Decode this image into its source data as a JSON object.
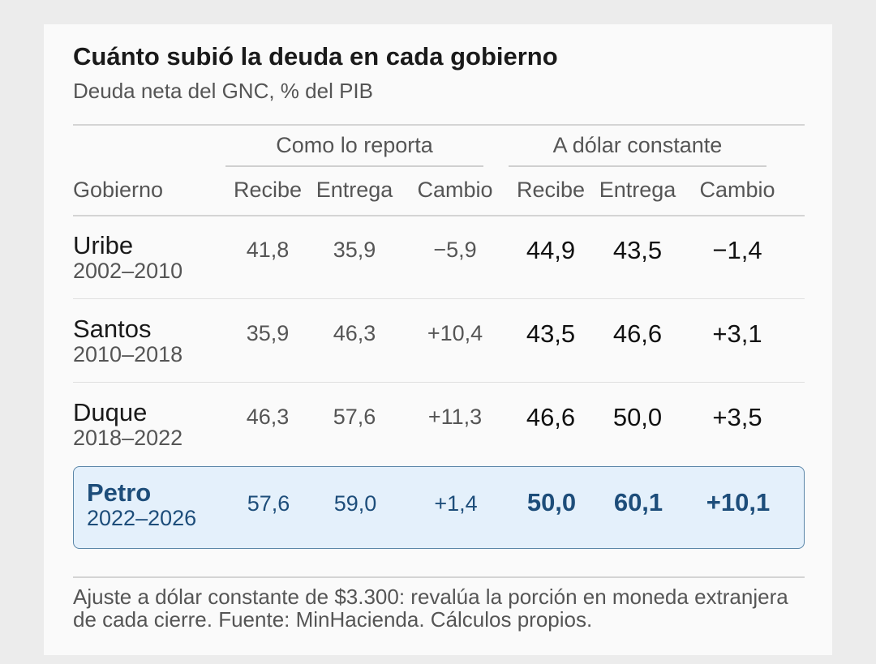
{
  "title": "Cuánto subió la deuda en cada gobierno",
  "subtitle": "Deuda neta del GNC, % del PIB",
  "groups": {
    "reported": "Como lo reporta",
    "constant": "A dólar constante"
  },
  "columns": {
    "gobierno": "Gobierno",
    "recibe": "Recibe",
    "entrega": "Entrega",
    "cambio": "Cambio"
  },
  "rows": [
    {
      "name": "Uribe",
      "years": "2002–2010",
      "rep_recibe": "41,8",
      "rep_entrega": "35,9",
      "rep_cambio": "−5,9",
      "cst_recibe": "44,9",
      "cst_entrega": "43,5",
      "cst_cambio": "−1,4"
    },
    {
      "name": "Santos",
      "years": "2010–2018",
      "rep_recibe": "35,9",
      "rep_entrega": "46,3",
      "rep_cambio": "+10,4",
      "cst_recibe": "43,5",
      "cst_entrega": "46,6",
      "cst_cambio": "+3,1"
    },
    {
      "name": "Duque",
      "years": "2018–2022",
      "rep_recibe": "46,3",
      "rep_entrega": "57,6",
      "rep_cambio": "+11,3",
      "cst_recibe": "46,6",
      "cst_entrega": "50,0",
      "cst_cambio": "+3,5"
    },
    {
      "name": "Petro",
      "years": "2022–2026",
      "rep_recibe": "57,6",
      "rep_entrega": "59,0",
      "rep_cambio": "+1,4",
      "cst_recibe": "50,0",
      "cst_entrega": "60,1",
      "cst_cambio": "+10,1",
      "highlighted": true
    }
  ],
  "note": "Ajuste a dólar constante de $3.300: revalúa la porción en moneda extranjera de cada cierre. Fuente: MinHacienda. Cálculos propios.",
  "colors": {
    "highlight_bg": "#e4f0fb",
    "highlight_text": "#1d4d7a"
  },
  "chart_data": {
    "type": "table",
    "title": "Cuánto subió la deuda en cada gobierno",
    "subtitle": "Deuda neta del GNC, % del PIB",
    "column_groups": [
      "Como lo reporta",
      "A dólar constante"
    ],
    "columns": [
      "Gobierno",
      "Recibe",
      "Entrega",
      "Cambio",
      "Recibe",
      "Entrega",
      "Cambio"
    ],
    "rows": [
      [
        "Uribe 2002–2010",
        41.8,
        35.9,
        -5.9,
        44.9,
        43.5,
        -1.4
      ],
      [
        "Santos 2010–2018",
        35.9,
        46.3,
        10.4,
        43.5,
        46.6,
        3.1
      ],
      [
        "Duque 2018–2022",
        46.3,
        57.6,
        11.3,
        46.6,
        50.0,
        3.5
      ],
      [
        "Petro 2022–2026",
        57.6,
        59.0,
        1.4,
        50.0,
        60.1,
        10.1
      ]
    ]
  }
}
